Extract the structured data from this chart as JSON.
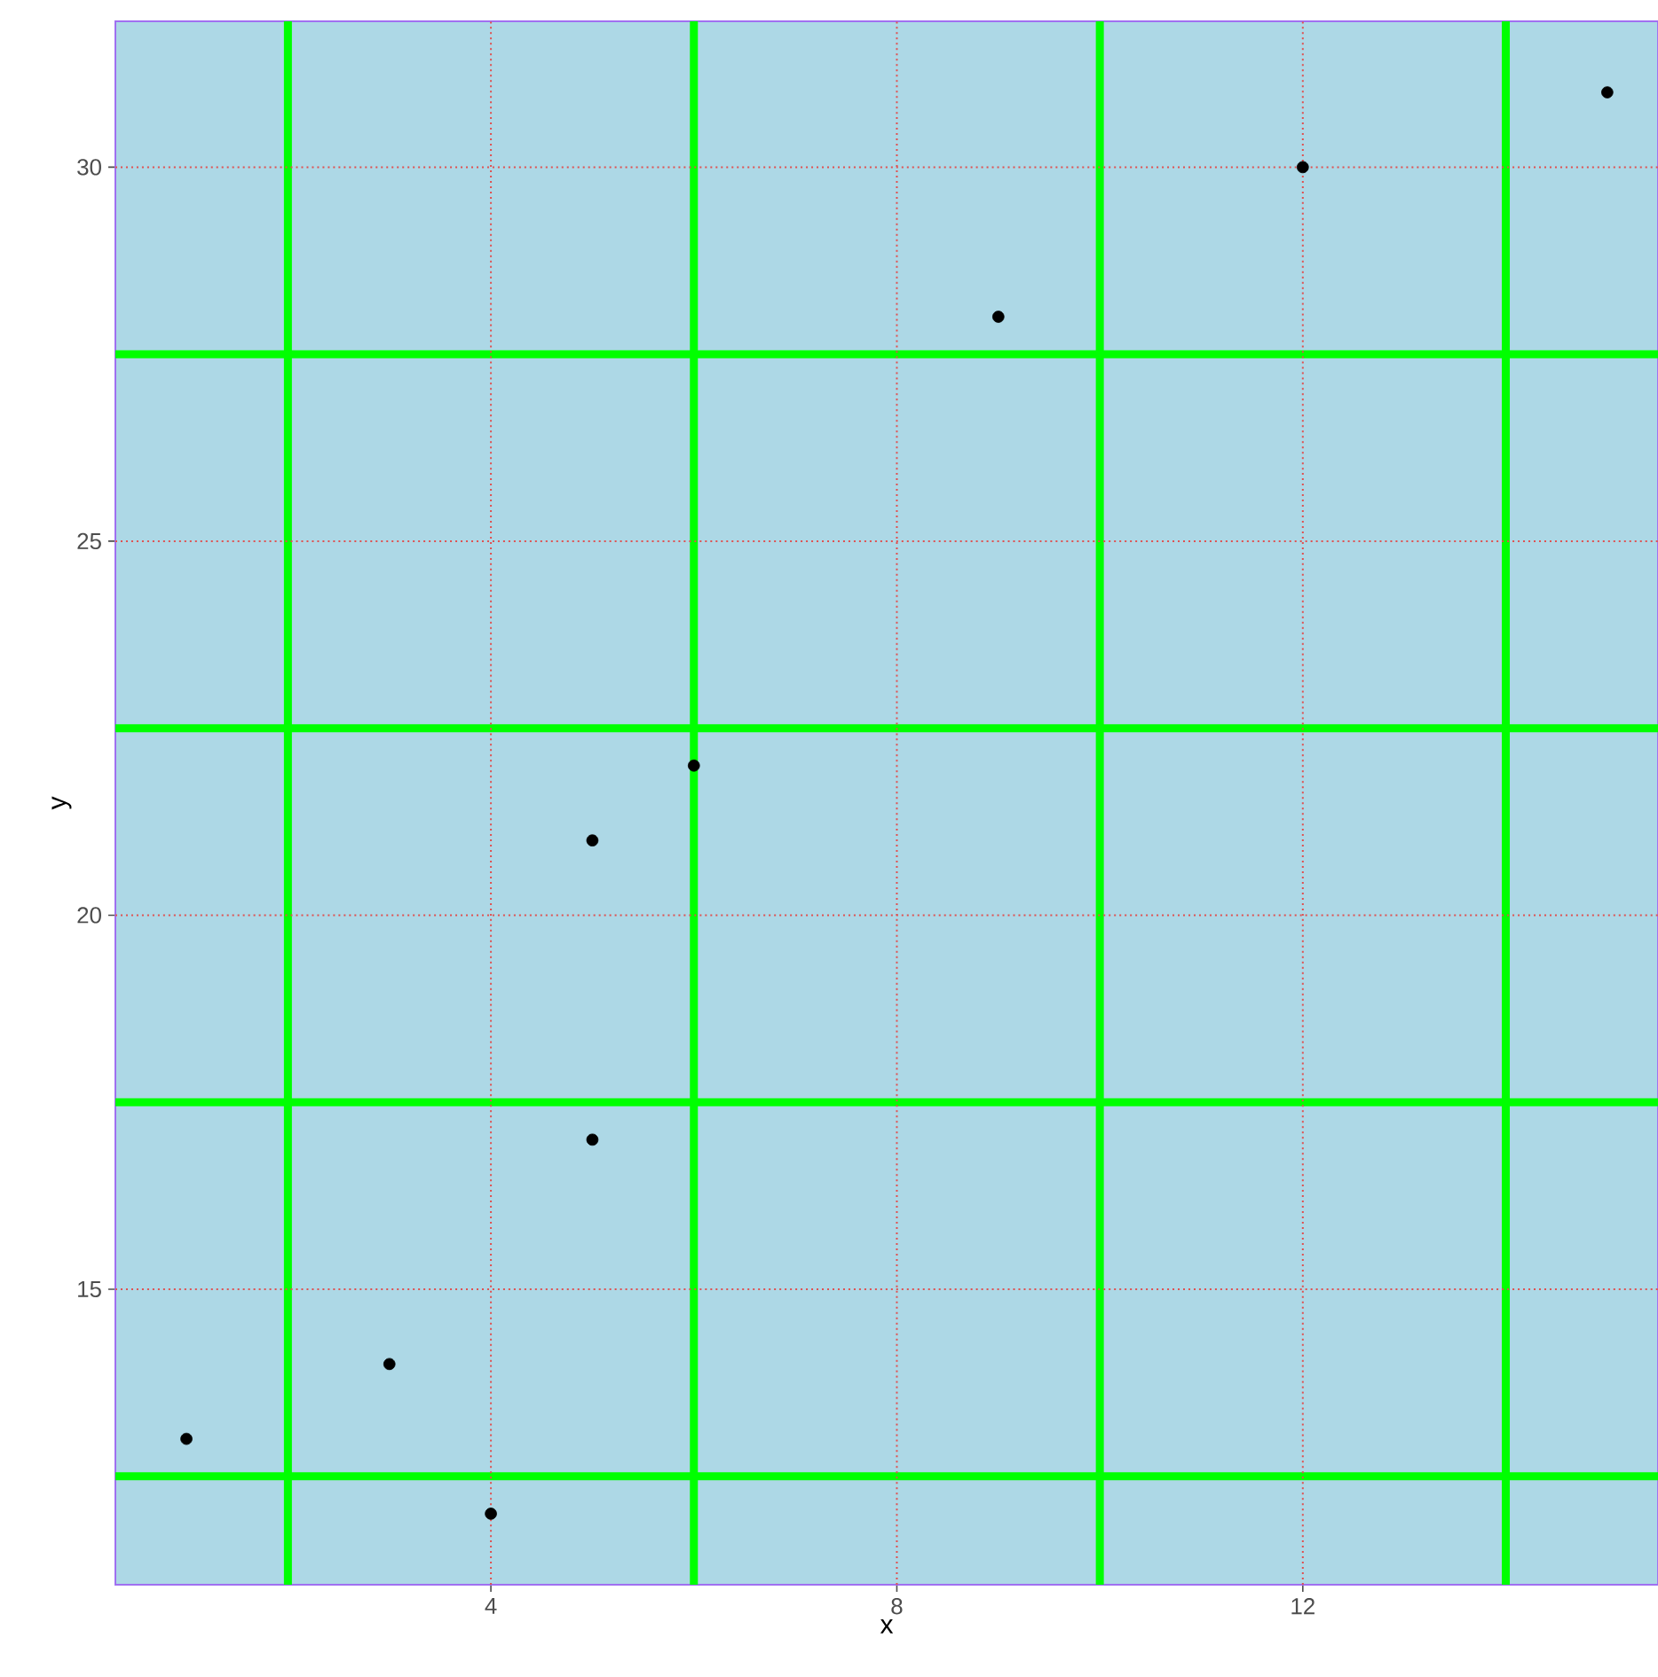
{
  "chart_data": {
    "type": "scatter",
    "xlabel": "x",
    "ylabel": "y",
    "x": [
      1,
      3,
      4,
      5,
      5,
      6,
      9,
      12,
      15
    ],
    "values": [
      13,
      14,
      12,
      17,
      21,
      22,
      28,
      30,
      31
    ],
    "color": "#000000",
    "marker": "circle",
    "grid": true,
    "xlim": [
      0.3,
      15.5
    ],
    "ylim": [
      11.05,
      31.95
    ],
    "xticks": [
      {
        "value": 2,
        "label": null
      },
      4,
      {
        "value": 6,
        "label": null
      },
      8,
      {
        "value": 10,
        "label": null
      },
      12,
      {
        "value": 14,
        "label": null
      }
    ],
    "yticks": [
      {
        "value": 12.5,
        "label": null
      },
      15,
      {
        "value": 17.5,
        "label": null
      },
      20,
      {
        "value": 22.5,
        "label": null
      },
      25,
      {
        "value": 27.5,
        "label": null
      },
      30
    ]
  }
}
